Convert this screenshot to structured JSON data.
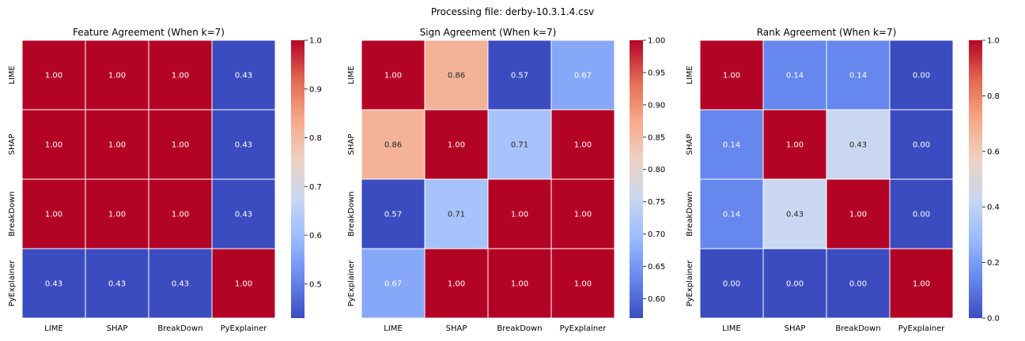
{
  "figure": {
    "suptitle": "Processing file: derby-10.3.1.4.csv"
  },
  "colormap": {
    "name": "coolwarm",
    "stops": [
      "#3b4cc0",
      "#6788ee",
      "#9abbff",
      "#c9d7f0",
      "#edd1c2",
      "#f7a889",
      "#e26952",
      "#b40426"
    ]
  },
  "chart_data": [
    {
      "type": "heatmap",
      "title": "Feature Agreement (When k=7)",
      "labels": [
        "LIME",
        "SHAP",
        "BreakDown",
        "PyExplainer"
      ],
      "values": [
        [
          1.0,
          1.0,
          1.0,
          0.43
        ],
        [
          1.0,
          1.0,
          1.0,
          0.43
        ],
        [
          1.0,
          1.0,
          1.0,
          0.43
        ],
        [
          0.43,
          0.43,
          0.43,
          1.0
        ]
      ],
      "annotations": [
        [
          "1.00",
          "1.00",
          "1.00",
          "0.43"
        ],
        [
          "1.00",
          "1.00",
          "1.00",
          "0.43"
        ],
        [
          "1.00",
          "1.00",
          "1.00",
          "0.43"
        ],
        [
          "0.43",
          "0.43",
          "0.43",
          "1.00"
        ]
      ],
      "vmin": 0.43,
      "vmax": 1.0,
      "colorbar_ticks": [
        0.5,
        0.6,
        0.7,
        0.8,
        0.9,
        1.0
      ],
      "colorbar_labels": [
        "0.5",
        "0.6",
        "0.7",
        "0.8",
        "0.9",
        "1.0"
      ]
    },
    {
      "type": "heatmap",
      "title": "Sign Agreement (When k=7)",
      "labels": [
        "LIME",
        "SHAP",
        "BreakDown",
        "PyExplainer"
      ],
      "values": [
        [
          1.0,
          0.86,
          0.57,
          0.67
        ],
        [
          0.86,
          1.0,
          0.71,
          1.0
        ],
        [
          0.57,
          0.71,
          1.0,
          1.0
        ],
        [
          0.67,
          1.0,
          1.0,
          1.0
        ]
      ],
      "annotations": [
        [
          "1.00",
          "0.86",
          "0.57",
          "0.67"
        ],
        [
          "0.86",
          "1.00",
          "0.71",
          "1.00"
        ],
        [
          "0.57",
          "0.71",
          "1.00",
          "1.00"
        ],
        [
          "0.67",
          "1.00",
          "1.00",
          "1.00"
        ]
      ],
      "vmin": 0.57,
      "vmax": 1.0,
      "colorbar_ticks": [
        0.6,
        0.65,
        0.7,
        0.75,
        0.8,
        0.85,
        0.9,
        0.95,
        1.0
      ],
      "colorbar_labels": [
        "0.60",
        "0.65",
        "0.70",
        "0.75",
        "0.80",
        "0.85",
        "0.90",
        "0.95",
        "1.00"
      ]
    },
    {
      "type": "heatmap",
      "title": "Rank Agreement (When k=7)",
      "labels": [
        "LIME",
        "SHAP",
        "BreakDown",
        "PyExplainer"
      ],
      "values": [
        [
          1.0,
          0.14,
          0.14,
          0.0
        ],
        [
          0.14,
          1.0,
          0.43,
          0.0
        ],
        [
          0.14,
          0.43,
          1.0,
          0.0
        ],
        [
          0.0,
          0.0,
          0.0,
          1.0
        ]
      ],
      "annotations": [
        [
          "1.00",
          "0.14",
          "0.14",
          "0.00"
        ],
        [
          "0.14",
          "1.00",
          "0.43",
          "0.00"
        ],
        [
          "0.14",
          "0.43",
          "1.00",
          "0.00"
        ],
        [
          "0.00",
          "0.00",
          "0.00",
          "1.00"
        ]
      ],
      "vmin": 0.0,
      "vmax": 1.0,
      "colorbar_ticks": [
        0.0,
        0.2,
        0.4,
        0.6,
        0.8,
        1.0
      ],
      "colorbar_labels": [
        "0.0",
        "0.2",
        "0.4",
        "0.6",
        "0.8",
        "1.0"
      ]
    }
  ]
}
